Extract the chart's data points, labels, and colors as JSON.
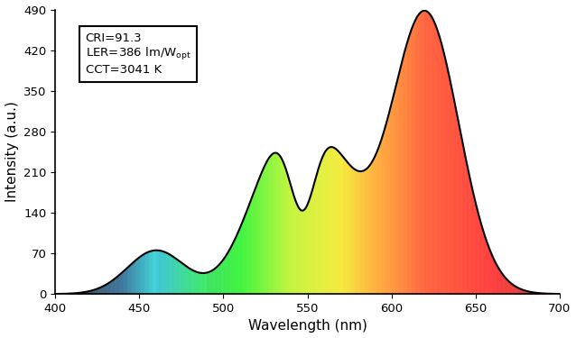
{
  "title": "",
  "xlabel": "Wavelength (nm)",
  "ylabel": "Intensity (a.u.)",
  "xlim": [
    400,
    700
  ],
  "ylim": [
    0,
    490
  ],
  "yticks": [
    0,
    70,
    140,
    210,
    280,
    350,
    420,
    490
  ],
  "xticks": [
    400,
    450,
    500,
    550,
    600,
    650,
    700
  ],
  "annotation_lines": [
    "CRI=91.3",
    "LER=386 lm/W$_{\\mathregular{opt}}$",
    "CCT=3041 K"
  ],
  "background_color": "#ffffff",
  "figsize": [
    6.38,
    3.75
  ],
  "dpi": 100
}
